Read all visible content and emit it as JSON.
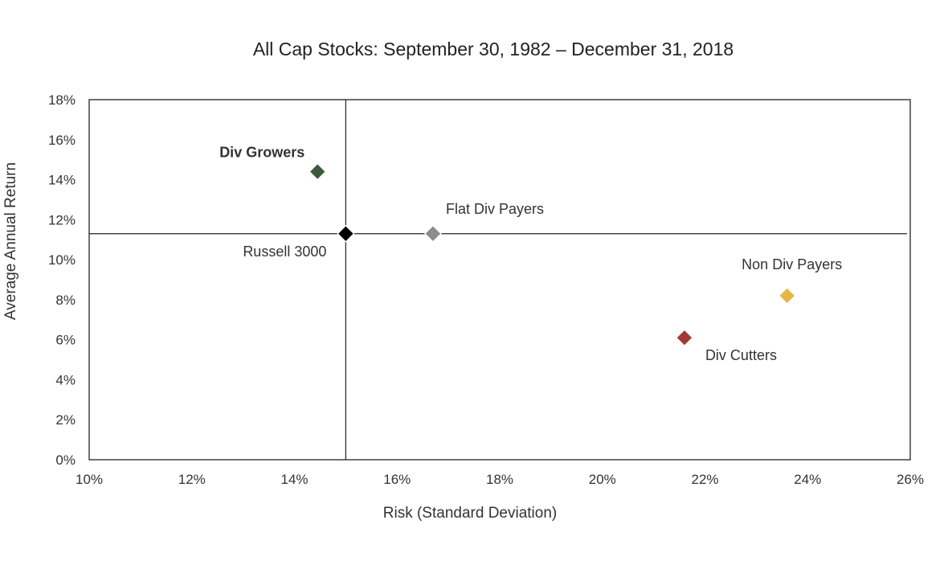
{
  "chart_data": {
    "type": "scatter",
    "title": "All Cap Stocks: September 30, 1982 – December 31, 2018",
    "xlabel": "Risk (Standard Deviation)",
    "ylabel": "Average Annual Return",
    "xlim": [
      10,
      26
    ],
    "ylim": [
      0,
      18
    ],
    "x_ticks": [
      "10%",
      "12%",
      "14%",
      "16%",
      "18%",
      "20%",
      "22%",
      "24%",
      "26%"
    ],
    "y_ticks": [
      "0%",
      "2%",
      "4%",
      "6%",
      "8%",
      "10%",
      "12%",
      "14%",
      "16%",
      "18%"
    ],
    "grid": false,
    "reference_lines": {
      "x": 15.0,
      "y": 11.3
    },
    "points": [
      {
        "label": "Div Growers",
        "x": 14.45,
        "y": 14.4,
        "color": "#3d5a3e",
        "bold": true,
        "label_pos": "top-left"
      },
      {
        "label": "Russell 3000",
        "x": 15.0,
        "y": 11.3,
        "color": "#000000",
        "bold": false,
        "label_pos": "bottom-left"
      },
      {
        "label": "Flat Div Payers",
        "x": 16.7,
        "y": 11.3,
        "color": "#8c8c8a",
        "bold": false,
        "label_pos": "top-right"
      },
      {
        "label": "Non Div Payers",
        "x": 23.6,
        "y": 8.2,
        "color": "#e6b647",
        "bold": false,
        "label_pos": "top"
      },
      {
        "label": "Div Cutters",
        "x": 21.6,
        "y": 6.1,
        "color": "#a23a33",
        "bold": false,
        "label_pos": "bottom-right"
      }
    ]
  }
}
